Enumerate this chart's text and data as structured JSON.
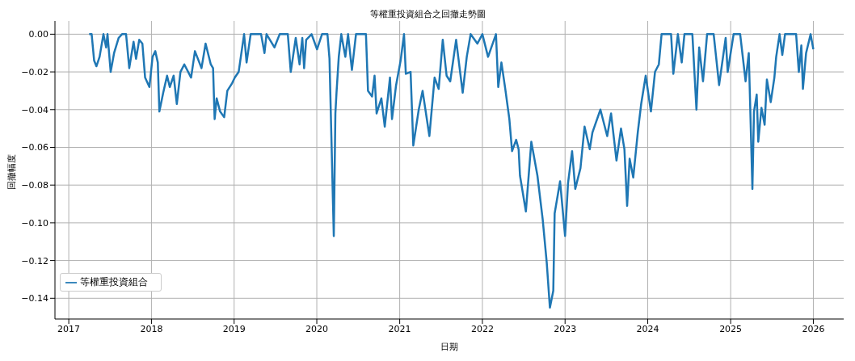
{
  "chart_data": {
    "type": "line",
    "title": "等權重投資組合之回撤走勢圖",
    "xlabel": "日期",
    "ylabel": "回撤幅度",
    "x": [
      "2017-04-01",
      "2017-04-12",
      "2017-04-23",
      "2017-05-03",
      "2017-05-17",
      "2017-06-03",
      "2017-06-15",
      "2017-06-21",
      "2017-07-05",
      "2017-07-20",
      "2017-08-09",
      "2017-08-24",
      "2017-09-11",
      "2017-09-25",
      "2017-10-14",
      "2017-10-25",
      "2017-11-08",
      "2017-11-22",
      "2017-12-04",
      "2017-12-23",
      "2018-01-06",
      "2018-01-18",
      "2018-01-29",
      "2018-02-05",
      "2018-02-22",
      "2018-03-11",
      "2018-03-23",
      "2018-04-09",
      "2018-04-23",
      "2018-05-09",
      "2018-05-26",
      "2018-06-25",
      "2018-07-12",
      "2018-08-10",
      "2018-08-28",
      "2018-09-20",
      "2018-09-30",
      "2018-10-07",
      "2018-10-16",
      "2018-10-31",
      "2018-11-18",
      "2018-12-02",
      "2018-12-23",
      "2019-01-04",
      "2019-01-21",
      "2019-02-14",
      "2019-02-25",
      "2019-03-15",
      "2019-04-30",
      "2019-05-15",
      "2019-05-24",
      "2019-06-28",
      "2019-07-21",
      "2019-08-26",
      "2019-09-08",
      "2019-09-30",
      "2019-10-17",
      "2019-10-29",
      "2019-11-06",
      "2019-11-15",
      "2019-12-09",
      "2020-01-02",
      "2020-01-24",
      "2020-02-17",
      "2020-02-26",
      "2020-03-16",
      "2020-03-23",
      "2020-03-28",
      "2020-04-07",
      "2020-04-18",
      "2020-05-06",
      "2020-05-18",
      "2020-06-04",
      "2020-06-22",
      "2020-08-05",
      "2020-08-14",
      "2020-09-01",
      "2020-09-12",
      "2020-09-21",
      "2020-10-12",
      "2020-10-27",
      "2020-11-19",
      "2020-11-28",
      "2020-12-16",
      "2021-01-05",
      "2021-01-20",
      "2021-01-28",
      "2021-02-18",
      "2021-03-02",
      "2021-03-26",
      "2021-04-12",
      "2021-05-12",
      "2021-06-04",
      "2021-06-22",
      "2021-07-10",
      "2021-07-27",
      "2021-08-12",
      "2021-09-07",
      "2021-10-06",
      "2021-10-24",
      "2021-11-10",
      "2021-12-10",
      "2022-01-01",
      "2022-01-26",
      "2022-03-02",
      "2022-03-12",
      "2022-03-26",
      "2022-04-12",
      "2022-04-30",
      "2022-05-12",
      "2022-05-30",
      "2022-06-10",
      "2022-06-16",
      "2022-07-12",
      "2022-08-05",
      "2022-09-01",
      "2022-09-24",
      "2022-10-12",
      "2022-10-26",
      "2022-11-10",
      "2022-11-16",
      "2022-12-10",
      "2023-01-01",
      "2023-01-14",
      "2023-02-01",
      "2023-02-15",
      "2023-03-10",
      "2023-03-28",
      "2023-04-20",
      "2023-05-02",
      "2023-06-06",
      "2023-07-06",
      "2023-07-23",
      "2023-08-16",
      "2023-09-05",
      "2023-09-20",
      "2023-10-02",
      "2023-10-13",
      "2023-10-29",
      "2023-11-18",
      "2023-12-03",
      "2023-12-23",
      "2024-01-15",
      "2024-02-02",
      "2024-02-19",
      "2024-03-02",
      "2024-04-13",
      "2024-04-23",
      "2024-05-13",
      "2024-05-30",
      "2024-06-11",
      "2024-07-16",
      "2024-08-03",
      "2024-08-15",
      "2024-09-01",
      "2024-09-19",
      "2024-10-18",
      "2024-11-11",
      "2024-12-10",
      "2024-12-19",
      "2025-01-14",
      "2025-02-12",
      "2025-03-08",
      "2025-03-22",
      "2025-04-07",
      "2025-04-14",
      "2025-04-26",
      "2025-05-03",
      "2025-05-17",
      "2025-05-31",
      "2025-06-10",
      "2025-06-27",
      "2025-07-13",
      "2025-07-21",
      "2025-08-05",
      "2025-08-17",
      "2025-08-29",
      "2025-10-17",
      "2025-10-29",
      "2025-11-09",
      "2025-11-16",
      "2025-11-30",
      "2025-12-20",
      "2026-01-01"
    ],
    "series": [
      {
        "name": "等權重投資組合",
        "color": "#1f77b4",
        "values": [
          0,
          0,
          -0.014,
          -0.017,
          -0.012,
          0,
          -0.007,
          0,
          -0.02,
          -0.01,
          -0.002,
          0,
          0,
          -0.018,
          -0.004,
          -0.013,
          -0.003,
          -0.005,
          -0.023,
          -0.028,
          -0.012,
          -0.009,
          -0.015,
          -0.041,
          -0.031,
          -0.022,
          -0.028,
          -0.022,
          -0.037,
          -0.02,
          -0.016,
          -0.023,
          -0.009,
          -0.018,
          -0.005,
          -0.016,
          -0.018,
          -0.045,
          -0.034,
          -0.041,
          -0.044,
          -0.03,
          -0.026,
          -0.023,
          -0.02,
          0,
          -0.015,
          0,
          0,
          -0.01,
          0,
          -0.007,
          0,
          0,
          -0.02,
          -0.002,
          -0.016,
          -0.002,
          -0.018,
          -0.003,
          0,
          -0.008,
          0,
          0,
          -0.013,
          -0.107,
          -0.042,
          -0.031,
          -0.012,
          0,
          -0.012,
          0,
          -0.019,
          0,
          0,
          -0.03,
          -0.033,
          -0.022,
          -0.042,
          -0.034,
          -0.049,
          -0.023,
          -0.045,
          -0.027,
          -0.014,
          0,
          -0.021,
          -0.02,
          -0.059,
          -0.04,
          -0.03,
          -0.054,
          -0.023,
          -0.029,
          -0.003,
          -0.022,
          -0.025,
          -0.003,
          -0.031,
          -0.012,
          0,
          -0.005,
          0,
          -0.012,
          0,
          -0.028,
          -0.015,
          -0.029,
          -0.045,
          -0.062,
          -0.056,
          -0.061,
          -0.075,
          -0.094,
          -0.057,
          -0.075,
          -0.098,
          -0.121,
          -0.145,
          -0.136,
          -0.095,
          -0.078,
          -0.107,
          -0.079,
          -0.062,
          -0.082,
          -0.071,
          -0.049,
          -0.061,
          -0.052,
          -0.04,
          -0.054,
          -0.042,
          -0.067,
          -0.05,
          -0.061,
          -0.091,
          -0.066,
          -0.076,
          -0.052,
          -0.037,
          -0.022,
          -0.041,
          -0.02,
          -0.016,
          0,
          0,
          -0.021,
          0,
          -0.015,
          0,
          0,
          -0.04,
          -0.007,
          -0.025,
          0,
          0,
          -0.027,
          -0.002,
          -0.02,
          0,
          0,
          -0.025,
          -0.01,
          -0.082,
          -0.041,
          -0.032,
          -0.057,
          -0.039,
          -0.048,
          -0.024,
          -0.036,
          -0.023,
          -0.012,
          0,
          -0.011,
          0,
          0,
          -0.02,
          -0.006,
          -0.029,
          -0.01,
          0,
          -0.008
        ]
      }
    ],
    "xlim": [
      "2016-11-01",
      "2026-05-15"
    ],
    "xticks": [
      {
        "value": "2017-01-01",
        "label": "2017"
      },
      {
        "value": "2018-01-01",
        "label": "2018"
      },
      {
        "value": "2019-01-01",
        "label": "2019"
      },
      {
        "value": "2020-01-01",
        "label": "2020"
      },
      {
        "value": "2021-01-01",
        "label": "2021"
      },
      {
        "value": "2022-01-01",
        "label": "2022"
      },
      {
        "value": "2023-01-01",
        "label": "2023"
      },
      {
        "value": "2024-01-01",
        "label": "2024"
      },
      {
        "value": "2025-01-01",
        "label": "2025"
      },
      {
        "value": "2026-01-01",
        "label": "2026"
      }
    ],
    "ylim": [
      -0.151,
      0.007
    ],
    "yticks": [
      {
        "value": -0.14,
        "label": "−0.14"
      },
      {
        "value": -0.12,
        "label": "−0.12"
      },
      {
        "value": -0.1,
        "label": "−0.10"
      },
      {
        "value": -0.08,
        "label": "−0.08"
      },
      {
        "value": -0.06,
        "label": "−0.06"
      },
      {
        "value": -0.04,
        "label": "−0.04"
      },
      {
        "value": -0.02,
        "label": "−0.02"
      },
      {
        "value": 0,
        "label": "0.00"
      }
    ],
    "grid": true,
    "legend": "bottom left"
  }
}
